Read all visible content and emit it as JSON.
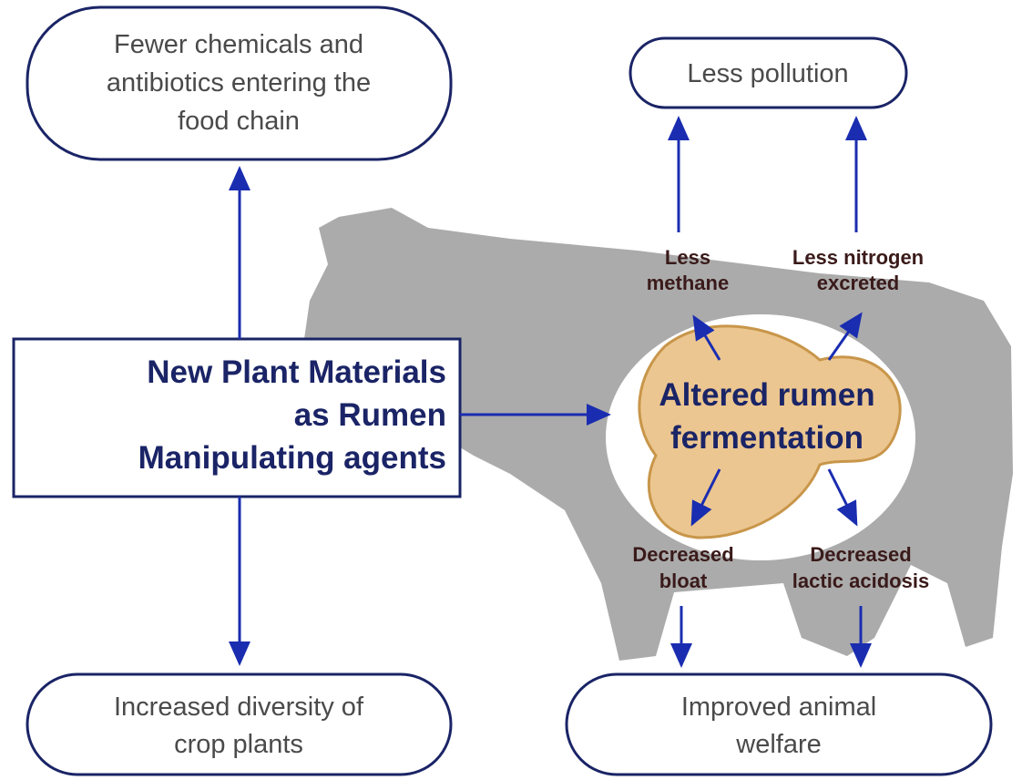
{
  "nodes": {
    "fewer_chemicals": {
      "lines": [
        "Fewer chemicals and",
        "antibiotics entering the",
        "food chain"
      ]
    },
    "less_pollution": {
      "lines": [
        "Less pollution"
      ]
    },
    "new_plant_materials": {
      "lines": [
        "New Plant Materials",
        "as Rumen",
        "Manipulating agents"
      ]
    },
    "altered_rumen": {
      "lines": [
        "Altered rumen",
        "fermentation"
      ]
    },
    "less_methane": {
      "lines": [
        "Less",
        "methane"
      ]
    },
    "less_nitrogen": {
      "lines": [
        "Less nitrogen",
        "excreted"
      ]
    },
    "decreased_bloat": {
      "lines": [
        "Decreased",
        "bloat"
      ]
    },
    "decreased_acidosis": {
      "lines": [
        "Decreased",
        "lactic acidosis"
      ]
    },
    "increased_diversity": {
      "lines": [
        "Increased diversity of",
        "crop plants"
      ]
    },
    "improved_welfare": {
      "lines": [
        "Improved animal",
        "welfare"
      ]
    }
  }
}
